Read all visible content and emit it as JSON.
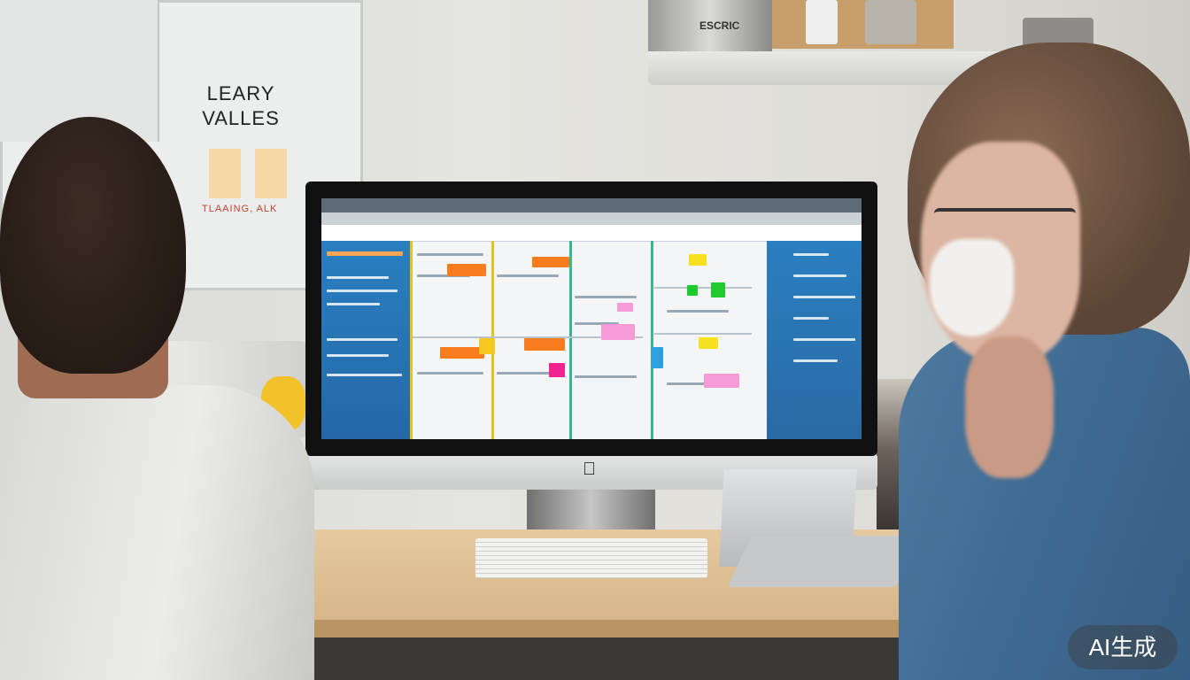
{
  "scene": {
    "description_type": "photo",
    "poster": {
      "title": "LEARY VALLES",
      "footer": "TLAAING, ALK"
    },
    "shelf_label": "ESCRIC",
    "watermark": "AI生成"
  },
  "colors": {
    "screen_sidebar": "#2a7fc0",
    "sticky_orange": "#f97c1e",
    "sticky_yellow": "#f6e11e",
    "sticky_green": "#1ecb2a",
    "sticky_pink": "#f79ad8",
    "sticky_magenta": "#f0238f",
    "sticky_blue": "#2ea0e0"
  }
}
